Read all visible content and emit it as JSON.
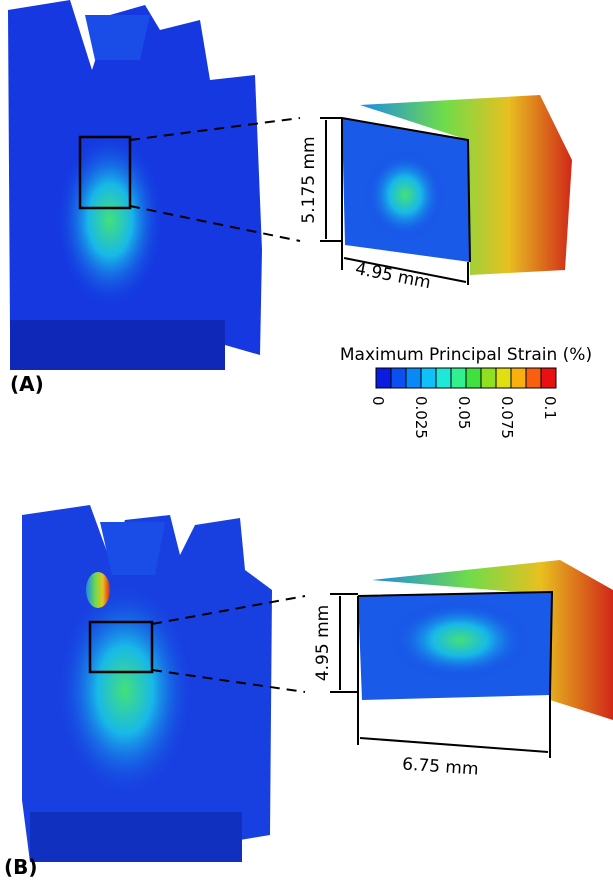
{
  "panels": [
    {
      "label": "(A)",
      "height_dimension": "5.175 mm",
      "width_dimension": "4.95 mm"
    },
    {
      "label": "(B)",
      "height_dimension": "4.95 mm",
      "width_dimension": "6.75 mm"
    }
  ],
  "legend": {
    "title": "Maximum Principal Strain (%)",
    "ticks": [
      0,
      0.025,
      0.05,
      0.075,
      0.1
    ]
  }
}
